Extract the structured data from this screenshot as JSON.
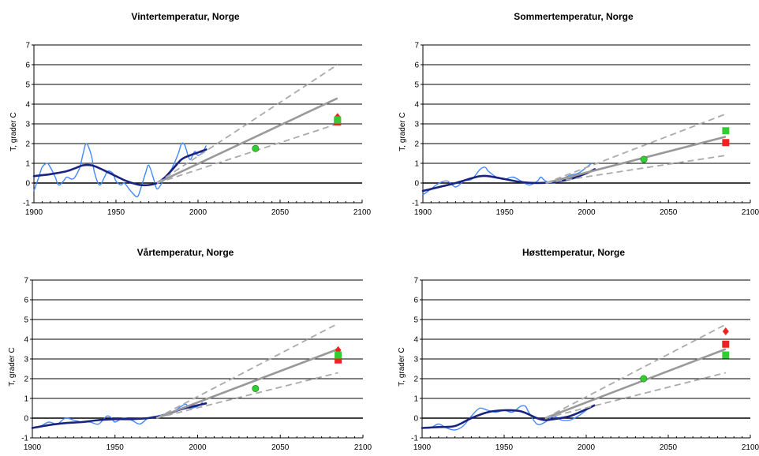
{
  "chart_data": [
    {
      "type": "line",
      "title": "Vintertemperatur,  Norge",
      "ylabel": "T, grader C",
      "xlim": [
        1900,
        2100
      ],
      "ylim": [
        -1,
        7
      ],
      "x_ticks": [
        1900,
        1950,
        2000,
        2050,
        2100
      ],
      "y_ticks": [
        -1,
        0,
        1,
        2,
        3,
        4,
        5,
        6,
        7
      ],
      "grid": true,
      "series": [
        {
          "role": "annual-filtered",
          "color": "#4488ff",
          "x": [
            1900,
            1903,
            1905,
            1908,
            1910,
            1913,
            1915,
            1918,
            1920,
            1923,
            1925,
            1928,
            1930,
            1932,
            1935,
            1937,
            1940,
            1943,
            1945,
            1948,
            1950,
            1953,
            1955,
            1958,
            1960,
            1963,
            1965,
            1968,
            1970,
            1973,
            1975,
            1978,
            1980,
            1983,
            1985,
            1988,
            1990,
            1992,
            1995,
            1998,
            2000,
            2003,
            2005
          ],
          "y": [
            -0.4,
            0.3,
            0.8,
            1.0,
            0.8,
            0.3,
            -0.1,
            0.1,
            0.3,
            0.2,
            0.3,
            0.8,
            1.5,
            2.0,
            1.4,
            0.5,
            -0.1,
            0.3,
            0.6,
            0.5,
            0.1,
            -0.1,
            0.0,
            -0.3,
            -0.5,
            -0.7,
            -0.3,
            0.5,
            0.9,
            0.2,
            -0.3,
            0.0,
            0.3,
            0.6,
            0.9,
            1.5,
            2.0,
            1.9,
            1.2,
            1.6,
            1.4,
            1.6,
            1.9
          ]
        },
        {
          "role": "smoothed",
          "color": "#1a237e",
          "x": [
            1900,
            1910,
            1920,
            1925,
            1930,
            1935,
            1940,
            1945,
            1950,
            1955,
            1960,
            1965,
            1970,
            1975,
            1980,
            1985,
            1990,
            1995,
            2000,
            2005
          ],
          "y": [
            0.35,
            0.45,
            0.6,
            0.75,
            0.9,
            0.9,
            0.75,
            0.55,
            0.35,
            0.15,
            0.0,
            -0.1,
            -0.1,
            0.0,
            0.3,
            0.75,
            1.2,
            1.4,
            1.55,
            1.7
          ]
        },
        {
          "role": "projection",
          "color": "#999999",
          "x": [
            1975,
            2085
          ],
          "y": [
            0.0,
            4.3
          ]
        },
        {
          "role": "projection-upper",
          "color": "#aaaaaa",
          "dashed": true,
          "x": [
            1975,
            2085
          ],
          "y": [
            0.0,
            6.0
          ]
        },
        {
          "role": "projection-lower",
          "color": "#aaaaaa",
          "dashed": true,
          "x": [
            1975,
            2085
          ],
          "y": [
            0.0,
            3.0
          ]
        }
      ],
      "markers": [
        {
          "shape": "circle",
          "color": "#33cc33",
          "x": 2035,
          "y": 1.75
        },
        {
          "shape": "diamond",
          "color": "#ee2222",
          "x": 2085,
          "y": 3.35
        },
        {
          "shape": "square",
          "color": "#ee2222",
          "x": 2085,
          "y": 3.1
        },
        {
          "shape": "square",
          "color": "#33cc33",
          "x": 2085,
          "y": 3.2
        }
      ]
    },
    {
      "type": "line",
      "title": "Sommertemperatur, Norge",
      "ylabel": "T, grader C",
      "xlim": [
        1900,
        2100
      ],
      "ylim": [
        -1,
        7
      ],
      "x_ticks": [
        1900,
        1950,
        2000,
        2050,
        2100
      ],
      "y_ticks": [
        -1,
        0,
        1,
        2,
        3,
        4,
        5,
        6,
        7
      ],
      "grid": true,
      "series": [
        {
          "role": "annual-filtered",
          "color": "#4488ff",
          "x": [
            1900,
            1905,
            1910,
            1915,
            1920,
            1925,
            1930,
            1935,
            1938,
            1940,
            1945,
            1950,
            1955,
            1960,
            1965,
            1970,
            1972,
            1975,
            1980,
            1985,
            1990,
            1995,
            2000,
            2003
          ],
          "y": [
            -0.6,
            -0.3,
            0.0,
            0.1,
            -0.2,
            0.1,
            0.2,
            0.7,
            0.8,
            0.6,
            0.3,
            0.2,
            0.3,
            0.1,
            -0.1,
            0.1,
            0.3,
            0.1,
            0.0,
            0.2,
            0.4,
            0.5,
            0.8,
            1.0
          ]
        },
        {
          "role": "smoothed",
          "color": "#1a237e",
          "x": [
            1900,
            1910,
            1920,
            1930,
            1935,
            1940,
            1950,
            1960,
            1970,
            1980,
            1990,
            2000,
            2005
          ],
          "y": [
            -0.4,
            -0.2,
            0.0,
            0.25,
            0.35,
            0.35,
            0.2,
            0.05,
            0.0,
            0.05,
            0.2,
            0.5,
            0.7
          ]
        },
        {
          "role": "projection",
          "color": "#999999",
          "x": [
            1975,
            2085
          ],
          "y": [
            0.0,
            2.35
          ]
        },
        {
          "role": "projection-upper",
          "color": "#aaaaaa",
          "dashed": true,
          "x": [
            1975,
            2085
          ],
          "y": [
            0.0,
            3.5
          ]
        },
        {
          "role": "projection-lower",
          "color": "#aaaaaa",
          "dashed": true,
          "x": [
            1975,
            2085
          ],
          "y": [
            0.0,
            1.4
          ]
        }
      ],
      "markers": [
        {
          "shape": "circle",
          "color": "#33cc33",
          "x": 2035,
          "y": 1.2
        },
        {
          "shape": "square",
          "color": "#33cc33",
          "x": 2085,
          "y": 2.65
        },
        {
          "shape": "square",
          "color": "#ee2222",
          "x": 2085,
          "y": 2.05
        }
      ]
    },
    {
      "type": "line",
      "title": "Vårtemperatur, Norge",
      "ylabel": "T, grader C",
      "xlim": [
        1900,
        2100
      ],
      "ylim": [
        -1,
        7
      ],
      "x_ticks": [
        1900,
        1950,
        2000,
        2050,
        2100
      ],
      "y_ticks": [
        -1,
        0,
        1,
        2,
        3,
        4,
        5,
        6,
        7
      ],
      "grid": true,
      "series": [
        {
          "role": "annual-filtered",
          "color": "#4488ff",
          "x": [
            1900,
            1905,
            1910,
            1915,
            1920,
            1925,
            1930,
            1935,
            1940,
            1945,
            1948,
            1950,
            1955,
            1960,
            1965,
            1970,
            1975,
            1980,
            1985,
            1990,
            1993,
            1995,
            2000,
            2003
          ],
          "y": [
            -0.5,
            -0.4,
            -0.2,
            -0.3,
            0.0,
            -0.1,
            -0.2,
            -0.2,
            -0.3,
            0.1,
            0.0,
            -0.2,
            0.0,
            -0.1,
            -0.3,
            0.0,
            0.1,
            0.2,
            0.3,
            0.6,
            0.7,
            0.5,
            0.6,
            0.8
          ]
        },
        {
          "role": "smoothed",
          "color": "#1a237e",
          "x": [
            1900,
            1910,
            1920,
            1930,
            1940,
            1950,
            1960,
            1970,
            1980,
            1990,
            2000,
            2005
          ],
          "y": [
            -0.5,
            -0.35,
            -0.25,
            -0.2,
            -0.1,
            -0.05,
            -0.05,
            0.0,
            0.15,
            0.45,
            0.65,
            0.75
          ]
        },
        {
          "role": "projection",
          "color": "#999999",
          "x": [
            1975,
            2085
          ],
          "y": [
            0.0,
            3.5
          ]
        },
        {
          "role": "projection-upper",
          "color": "#aaaaaa",
          "dashed": true,
          "x": [
            1975,
            2085
          ],
          "y": [
            0.0,
            4.8
          ]
        },
        {
          "role": "projection-lower",
          "color": "#aaaaaa",
          "dashed": true,
          "x": [
            1975,
            2085
          ],
          "y": [
            0.0,
            2.3
          ]
        }
      ],
      "markers": [
        {
          "shape": "circle",
          "color": "#33cc33",
          "x": 2035,
          "y": 1.5
        },
        {
          "shape": "diamond",
          "color": "#ee2222",
          "x": 2085,
          "y": 3.45
        },
        {
          "shape": "square",
          "color": "#ee2222",
          "x": 2085,
          "y": 2.95
        },
        {
          "shape": "square",
          "color": "#33cc33",
          "x": 2085,
          "y": 3.2
        }
      ]
    },
    {
      "type": "line",
      "title": "Høsttemperatur, Norge",
      "ylabel": "T, grader C",
      "xlim": [
        1900,
        2100
      ],
      "ylim": [
        -1,
        7
      ],
      "x_ticks": [
        1900,
        1950,
        2000,
        2050,
        2100
      ],
      "y_ticks": [
        -1,
        0,
        1,
        2,
        3,
        4,
        5,
        6,
        7
      ],
      "grid": true,
      "series": [
        {
          "role": "annual-filtered",
          "color": "#4488ff",
          "x": [
            1900,
            1905,
            1910,
            1915,
            1920,
            1925,
            1930,
            1935,
            1940,
            1945,
            1950,
            1955,
            1960,
            1963,
            1965,
            1970,
            1975,
            1980,
            1985,
            1990,
            1995,
            2000,
            2003
          ],
          "y": [
            -0.5,
            -0.5,
            -0.3,
            -0.5,
            -0.6,
            -0.4,
            0.1,
            0.5,
            0.4,
            0.3,
            0.4,
            0.3,
            0.6,
            0.6,
            0.3,
            -0.3,
            -0.2,
            0.1,
            -0.1,
            -0.1,
            0.1,
            0.4,
            0.6
          ]
        },
        {
          "role": "smoothed",
          "color": "#1a237e",
          "x": [
            1900,
            1910,
            1920,
            1930,
            1940,
            1950,
            1960,
            1970,
            1975,
            1980,
            1990,
            2000,
            2005
          ],
          "y": [
            -0.5,
            -0.45,
            -0.4,
            0.0,
            0.3,
            0.4,
            0.35,
            0.0,
            -0.1,
            -0.05,
            0.1,
            0.45,
            0.65
          ]
        },
        {
          "role": "projection",
          "color": "#999999",
          "x": [
            1975,
            2085
          ],
          "y": [
            0.0,
            3.5
          ]
        },
        {
          "role": "projection-upper",
          "color": "#aaaaaa",
          "dashed": true,
          "x": [
            1975,
            2085
          ],
          "y": [
            0.0,
            4.75
          ]
        },
        {
          "role": "projection-lower",
          "color": "#aaaaaa",
          "dashed": true,
          "x": [
            1975,
            2085
          ],
          "y": [
            0.0,
            2.3
          ]
        }
      ],
      "markers": [
        {
          "shape": "circle",
          "color": "#33cc33",
          "x": 2035,
          "y": 2.0
        },
        {
          "shape": "diamond",
          "color": "#ee2222",
          "x": 2085,
          "y": 4.4
        },
        {
          "shape": "square",
          "color": "#ee2222",
          "x": 2085,
          "y": 3.75
        },
        {
          "shape": "square",
          "color": "#33cc33",
          "x": 2085,
          "y": 3.2
        }
      ]
    }
  ]
}
